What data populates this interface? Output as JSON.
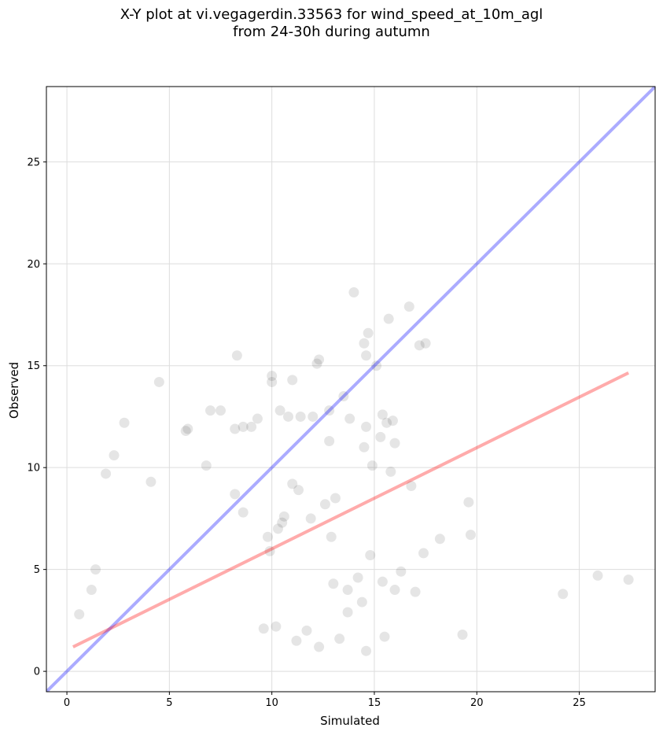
{
  "chart_data": {
    "type": "scatter",
    "title_line1": "X-Y plot at vi.vegagerdin.33563 for wind_speed_at_10m_agl",
    "title_line2": "from 24-30h during autumn",
    "xlabel": "Simulated",
    "ylabel": "Observed",
    "xlim": [
      -1.0,
      28.7
    ],
    "ylim": [
      -1.0,
      28.7
    ],
    "xticks": [
      0,
      5,
      10,
      15,
      20,
      25
    ],
    "yticks": [
      0,
      5,
      10,
      15,
      20,
      25
    ],
    "grid": true,
    "colors": {
      "points": "#000000",
      "identity_line": "#0000ff",
      "fit_line": "#ff0000",
      "grid": "#dddddd"
    },
    "identity_line": {
      "x": [
        -1.0,
        28.7
      ],
      "y": [
        -1.0,
        28.7
      ]
    },
    "fit_line": {
      "x": [
        0.3,
        27.4
      ],
      "y": [
        1.2,
        14.65
      ]
    },
    "series": [
      {
        "x": [
          2.8,
          4.5,
          8.3,
          14.0,
          16.7,
          17.2,
          17.5,
          14.7,
          15.7,
          14.5,
          15.1,
          14.6,
          12.3,
          12.2,
          13.5,
          12.8,
          13.8,
          15.4,
          14.6,
          15.6,
          15.9,
          16.0,
          15.3,
          11.0,
          10.0,
          10.4,
          7.0,
          7.5,
          5.9,
          5.8,
          8.2,
          8.6,
          9.0,
          9.3,
          10.0,
          10.8,
          11.4,
          12.0,
          12.8,
          14.5,
          14.9,
          15.8,
          16.8,
          17.4,
          18.2,
          19.7,
          19.6,
          14.8,
          15.5,
          24.2,
          25.9,
          27.4,
          19.3,
          14.6,
          15.4,
          13.0,
          13.7,
          14.2,
          2.3,
          1.9,
          1.4,
          1.2,
          0.6,
          6.8,
          4.1,
          9.6,
          10.2,
          11.2,
          11.7,
          12.3,
          13.3,
          13.7,
          14.4,
          16.0,
          16.3,
          17.0,
          12.9,
          10.5,
          8.6,
          8.2,
          11.0,
          11.3,
          12.6,
          13.1,
          11.9,
          10.3,
          9.8,
          9.9,
          10.6
        ],
        "y": [
          12.2,
          14.2,
          15.5,
          18.6,
          17.9,
          16.0,
          16.1,
          16.6,
          17.3,
          16.1,
          15.0,
          15.5,
          15.3,
          15.1,
          13.5,
          12.8,
          12.4,
          12.6,
          12.0,
          12.2,
          12.3,
          11.2,
          11.5,
          14.3,
          14.5,
          12.8,
          12.8,
          12.8,
          11.9,
          11.8,
          11.9,
          12.0,
          12.0,
          12.4,
          14.2,
          12.5,
          12.5,
          12.5,
          11.3,
          11.0,
          10.1,
          9.8,
          9.1,
          5.8,
          6.5,
          6.7,
          8.3,
          5.7,
          1.7,
          3.8,
          4.7,
          4.5,
          1.8,
          1.0,
          4.4,
          4.3,
          4.0,
          4.6,
          10.6,
          9.7,
          5.0,
          4.0,
          2.8,
          10.1,
          9.3,
          2.1,
          2.2,
          1.5,
          2.0,
          1.2,
          1.6,
          2.9,
          3.4,
          4.0,
          4.9,
          3.9,
          6.6,
          7.3,
          7.8,
          8.7,
          9.2,
          8.9,
          8.2,
          8.5,
          7.5,
          7.0,
          6.6,
          5.9,
          7.6
        ]
      }
    ]
  }
}
